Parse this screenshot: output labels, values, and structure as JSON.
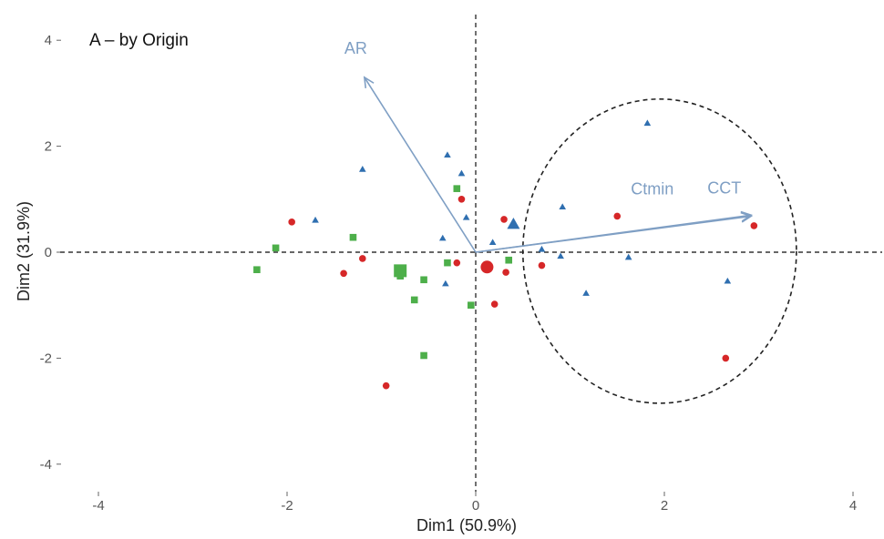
{
  "chart_data": {
    "type": "scatter",
    "title": "A – by Origin",
    "xlabel": "Dim1 (50.9%)",
    "ylabel": "Dim2 (31.9%)",
    "xlim": [
      -4.5,
      4.5
    ],
    "ylim": [
      -4.6,
      4.4
    ],
    "xticks": [
      -4,
      -2,
      0,
      2,
      4
    ],
    "yticks": [
      -4,
      -2,
      0,
      2,
      4
    ],
    "grid": false,
    "colors": {
      "triangle": "#2f6fb0",
      "square": "#4daf4a",
      "circle": "#d62728",
      "vector": "#7f9fc4"
    },
    "series": [
      {
        "marker": "triangle",
        "points": [
          [
            1.82,
            2.43
          ],
          [
            -1.2,
            1.56
          ],
          [
            -0.15,
            1.48
          ],
          [
            -0.3,
            1.83
          ],
          [
            -1.7,
            0.6
          ],
          [
            -0.1,
            0.65
          ],
          [
            0.92,
            0.85
          ],
          [
            -0.35,
            0.26
          ],
          [
            0.18,
            0.18
          ],
          [
            0.7,
            0.05
          ],
          [
            0.9,
            -0.08
          ],
          [
            1.62,
            -0.1
          ],
          [
            1.17,
            -0.78
          ],
          [
            2.67,
            -0.55
          ],
          [
            -0.32,
            -0.6
          ]
        ],
        "centroid": [
          0.4,
          0.52
        ]
      },
      {
        "marker": "square",
        "points": [
          [
            -2.32,
            -0.33
          ],
          [
            -2.12,
            0.08
          ],
          [
            -1.3,
            0.28
          ],
          [
            -0.2,
            1.2
          ],
          [
            -0.3,
            -0.2
          ],
          [
            -0.55,
            -0.52
          ],
          [
            -0.8,
            -0.45
          ],
          [
            -0.65,
            -0.9
          ],
          [
            -0.05,
            -1.0
          ],
          [
            -0.55,
            -1.95
          ],
          [
            0.35,
            -0.15
          ],
          [
            -0.8,
            -0.32
          ]
        ],
        "centroid": [
          -0.8,
          -0.35
        ]
      },
      {
        "marker": "circle",
        "points": [
          [
            -1.95,
            0.57
          ],
          [
            -1.4,
            -0.4
          ],
          [
            -1.2,
            -0.12
          ],
          [
            -0.15,
            1.0
          ],
          [
            0.3,
            0.62
          ],
          [
            1.5,
            0.68
          ],
          [
            2.95,
            0.5
          ],
          [
            0.7,
            -0.25
          ],
          [
            0.32,
            -0.38
          ],
          [
            0.2,
            -0.98
          ],
          [
            -0.2,
            -0.2
          ],
          [
            2.65,
            -2.0
          ],
          [
            -0.95,
            -2.52
          ]
        ],
        "centroid": [
          0.12,
          -0.28
        ]
      }
    ],
    "vectors": [
      {
        "label": "AR",
        "x": -1.18,
        "y": 3.3
      },
      {
        "label": "Ctmin",
        "x": 2.92,
        "y": 0.68
      },
      {
        "label": "CCT",
        "x": 2.92,
        "y": 0.7
      }
    ],
    "ellipse": {
      "cx": 1.95,
      "cy": 0.02,
      "rx": 1.45,
      "ry": 2.87
    },
    "reference_lines": {
      "x": 0,
      "y": 0
    }
  }
}
